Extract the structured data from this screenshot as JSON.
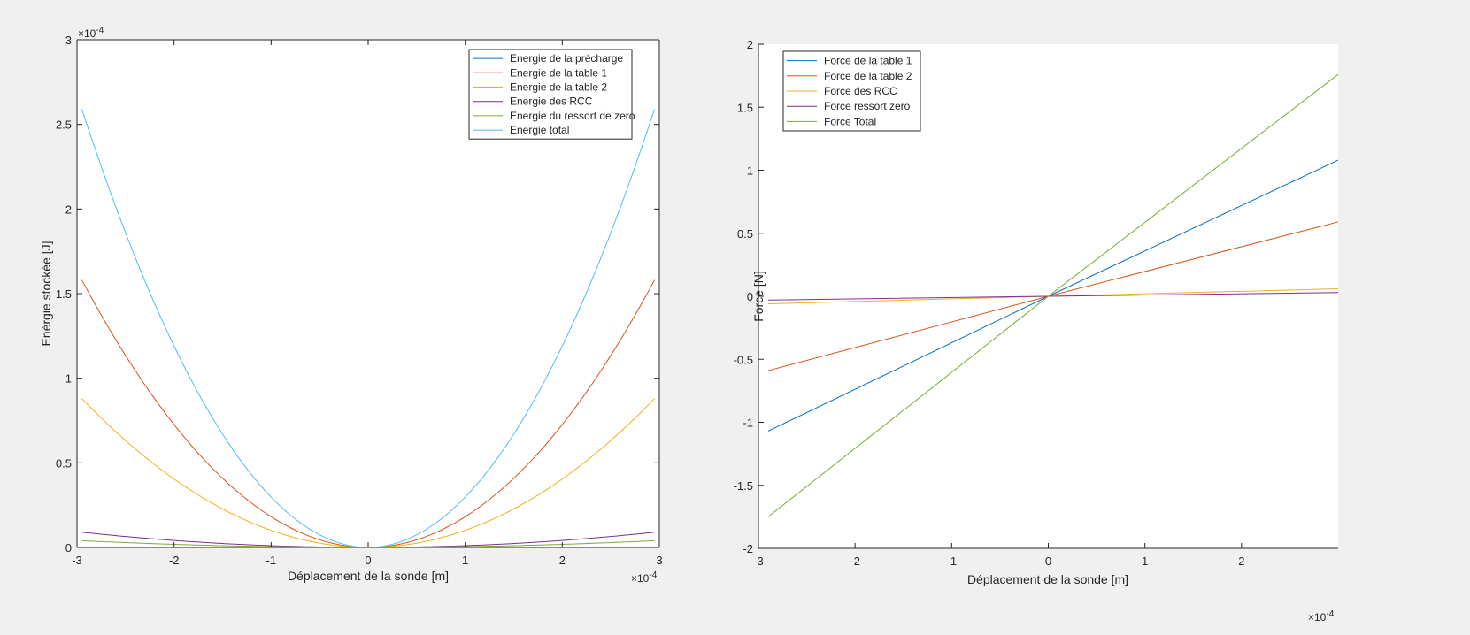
{
  "colors": {
    "figure_bg": "#f0f0f0",
    "axes_bg": "#ffffff",
    "axis": "#262626",
    "legend_border": "#262626",
    "series": {
      "blue": "#0072bd",
      "orange": "#d95319",
      "yellow": "#edb120",
      "purple": "#7e2f8e",
      "green": "#77ac30",
      "cyan": "#4dbeee"
    }
  },
  "chart_data": [
    {
      "type": "line",
      "title": "",
      "xlabel": "Déplacement de la sonde [m]",
      "ylabel": "Enérgie stockée [J]",
      "x_exponent_label": "×10",
      "x_exponent": "-4",
      "y_exponent_label": "×10",
      "y_exponent": "-4",
      "xlim": [
        -3,
        3
      ],
      "ylim": [
        0,
        3
      ],
      "data_xrange": [
        -2.95,
        2.95
      ],
      "xticks": [
        -3,
        -2,
        -1,
        0,
        1,
        2,
        3
      ],
      "xtick_labels": [
        "-3",
        "-2",
        "-1",
        "0",
        "1",
        "2",
        "3"
      ],
      "yticks": [
        0,
        0.5,
        1,
        1.5,
        2,
        2.5,
        3
      ],
      "ytick_labels": [
        "0",
        "0.5",
        "1",
        "1.5",
        "2",
        "2.5",
        "3"
      ],
      "grid": false,
      "box": true,
      "legend_position": "top-right",
      "series": [
        {
          "name": "Energie de la précharge",
          "color": "#0072bd",
          "kind": "quadratic",
          "value_at_max": 0.0
        },
        {
          "name": "Energie de la table 1",
          "color": "#d95319",
          "kind": "quadratic",
          "value_at_max": 1.58
        },
        {
          "name": "Energie de la table 2",
          "color": "#edb120",
          "kind": "quadratic",
          "value_at_max": 0.88
        },
        {
          "name": "Energie des RCC",
          "color": "#7e2f8e",
          "kind": "quadratic",
          "value_at_max": 0.09
        },
        {
          "name": "Energie du ressort de zero",
          "color": "#77ac30",
          "kind": "quadratic",
          "value_at_max": 0.04
        },
        {
          "name": "Energie total",
          "color": "#4dbeee",
          "kind": "quadratic",
          "value_at_max": 2.59
        }
      ]
    },
    {
      "type": "line",
      "title": "",
      "xlabel": "Déplacement de la sonde [m]",
      "ylabel": "Force [N]",
      "x_exponent_label": "×10",
      "x_exponent": "-4",
      "xlim": [
        -3,
        3
      ],
      "ylim": [
        -2,
        2
      ],
      "data_xrange": [
        -2.9,
        3.0
      ],
      "xticks": [
        -3,
        -2,
        -1,
        0,
        1,
        2
      ],
      "xtick_labels": [
        "-3",
        "-2",
        "-1",
        "0",
        "1",
        "2"
      ],
      "yticks": [
        -2,
        -1.5,
        -1,
        -0.5,
        0,
        0.5,
        1,
        1.5,
        2
      ],
      "ytick_labels": [
        "-2",
        "-1.5",
        "-1",
        "-0.5",
        "0",
        "0.5",
        "1",
        "1.5",
        "2"
      ],
      "grid": false,
      "box": false,
      "legend_position": "top-left",
      "series": [
        {
          "name": "Force de la table 1",
          "color": "#0072bd",
          "kind": "linear",
          "value_at_max": 1.08,
          "value_at_min": -1.07
        },
        {
          "name": "Force de la table 2",
          "color": "#d95319",
          "kind": "linear",
          "value_at_max": 0.59,
          "value_at_min": -0.59
        },
        {
          "name": "Force des RCC",
          "color": "#edb120",
          "kind": "linear",
          "value_at_max": 0.06,
          "value_at_min": -0.06
        },
        {
          "name": "Force ressort zero",
          "color": "#7e2f8e",
          "kind": "linear",
          "value_at_max": 0.03,
          "value_at_min": -0.03
        },
        {
          "name": "Force Total",
          "color": "#77ac30",
          "kind": "linear",
          "value_at_max": 1.76,
          "value_at_min": -1.75
        }
      ]
    }
  ]
}
